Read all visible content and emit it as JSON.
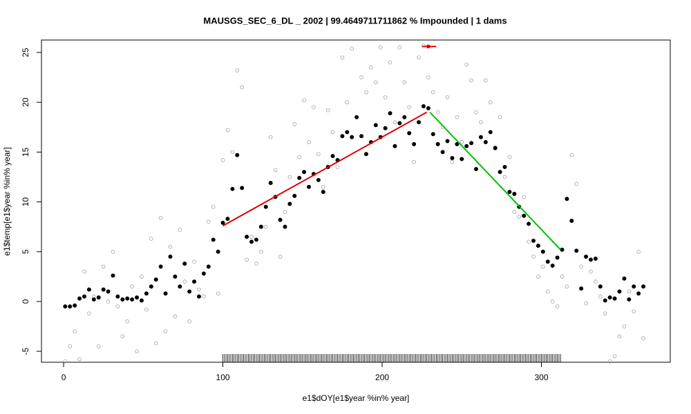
{
  "chart_data": {
    "type": "scatter",
    "title": "MAUSGS_SEC_6_DL _ 2002   |   99.4649711711862  % Impounded |  1  dams",
    "xlabel": "e1$dOY[e1$year %in% year]",
    "ylabel": "e1$temp[e1$year %in% year]",
    "xlim": [
      -13.9,
      380.9
    ],
    "ylim": [
      -6.1,
      26.25
    ],
    "xticks": [
      0,
      100,
      200,
      300
    ],
    "yticks": [
      -5,
      0,
      5,
      10,
      15,
      20,
      25
    ],
    "x": [
      1,
      4,
      7,
      10,
      13,
      16,
      19,
      22,
      25,
      28,
      31,
      34,
      37,
      40,
      43,
      46,
      49,
      52,
      55,
      58,
      61,
      64,
      67,
      70,
      73,
      76,
      79,
      82,
      85,
      88,
      91,
      94,
      97,
      100,
      103,
      106,
      109,
      112,
      115,
      118,
      121,
      124,
      127,
      130,
      133,
      136,
      139,
      142,
      145,
      148,
      151,
      154,
      157,
      160,
      163,
      166,
      169,
      172,
      175,
      178,
      181,
      184,
      187,
      190,
      193,
      196,
      199,
      202,
      205,
      208,
      211,
      214,
      217,
      220,
      223,
      226,
      229,
      232,
      235,
      238,
      241,
      244,
      247,
      250,
      253,
      256,
      259,
      262,
      265,
      268,
      271,
      274,
      277,
      280,
      283,
      286,
      289,
      292,
      295,
      298,
      301,
      304,
      307,
      310,
      313,
      316,
      319,
      322,
      325,
      328,
      331,
      334,
      337,
      340,
      343,
      346,
      349,
      352,
      355,
      358,
      361,
      364
    ],
    "series": [
      {
        "color": "#a0a0a0",
        "filled": false,
        "values": [
          -6.0,
          -4.5,
          -3.0,
          -5.8,
          3.0,
          -1.2,
          0.5,
          -4.5,
          3.5,
          0.0,
          5.0,
          -0.5,
          -3.5,
          -2.0,
          1.5,
          -5.0,
          2.5,
          -0.8,
          6.3,
          -4.2,
          8.4,
          -3.0,
          5.5,
          -1.5,
          7.2,
          2.0,
          -2.0,
          4.0,
          1.2,
          0.5,
          8.0,
          9.5,
          0.8,
          14.2,
          17.2,
          15.0,
          23.2,
          21.5,
          4.2,
          6.5,
          3.8,
          5.0,
          7.5,
          16.5,
          13.2,
          4.5,
          9.0,
          12.5,
          17.8,
          14.5,
          20.2,
          16.0,
          19.5,
          14.8,
          11.5,
          19.2,
          17.0,
          13.5,
          24.5,
          20.0,
          25.4,
          18.5,
          22.5,
          21.0,
          23.5,
          22.0,
          25.5,
          20.5,
          24.0,
          18.0,
          25.5,
          22.0,
          19.5,
          14.0,
          24.5,
          25.7,
          22.5,
          21.0,
          19.0,
          17.5,
          20.5,
          14.0,
          18.5,
          16.0,
          23.8,
          22.2,
          19.0,
          18.0,
          22.2,
          20.0,
          15.5,
          18.5,
          12.5,
          14.5,
          9.0,
          8.5,
          10.5,
          6.0,
          4.5,
          2.5,
          3.5,
          1.0,
          0.0,
          -0.5,
          2.5,
          1.5,
          14.7,
          11.8,
          3.5,
          -0.2,
          3.0,
          2.0,
          0.5,
          -1.2,
          -6.0,
          -5.5,
          -3.5,
          -2.5,
          1.0,
          -1.0,
          5.0,
          -3.7
        ]
      },
      {
        "color": "#000000",
        "filled": true,
        "values": [
          -0.5,
          -0.5,
          -0.4,
          0.3,
          0.5,
          1.2,
          0.2,
          0.4,
          1.2,
          1.0,
          2.6,
          0.5,
          0.2,
          0.3,
          0.2,
          0.4,
          0.1,
          0.8,
          1.5,
          2.2,
          3.5,
          0.8,
          4.5,
          2.5,
          1.5,
          3.8,
          1.0,
          2.0,
          0.5,
          2.8,
          3.5,
          6.2,
          5.0,
          7.9,
          8.3,
          11.3,
          14.7,
          11.4,
          6.5,
          6.0,
          6.2,
          7.5,
          9.5,
          11.9,
          10.5,
          8.2,
          7.5,
          9.8,
          10.6,
          12.4,
          13.0,
          11.5,
          12.8,
          12.2,
          11.0,
          13.5,
          14.6,
          14.2,
          16.6,
          17.0,
          16.5,
          18.5,
          16.6,
          14.8,
          16.0,
          17.7,
          16.5,
          17.4,
          18.9,
          15.6,
          17.9,
          18.5,
          16.9,
          15.8,
          18.0,
          19.6,
          19.4,
          16.8,
          15.8,
          15.0,
          16.1,
          14.4,
          15.8,
          14.3,
          15.6,
          15.9,
          13.3,
          16.5,
          16.0,
          17.0,
          15.4,
          13.0,
          13.5,
          11.0,
          10.8,
          9.5,
          8.6,
          7.8,
          6.1,
          5.6,
          5.0,
          4.0,
          3.6,
          4.4,
          5.2,
          10.3,
          8.1,
          5.1,
          1.3,
          4.5,
          4.2,
          4.3,
          1.5,
          0.1,
          0.4,
          0.3,
          1.0,
          2.3,
          0.2,
          1.5,
          0.8,
          1.5
        ]
      }
    ],
    "lines": [
      {
        "color": "#dd0000",
        "x": [
          100,
          228
        ],
        "y": [
          7.6,
          19.0
        ]
      },
      {
        "color": "#00c000",
        "x": [
          230,
          312
        ],
        "y": [
          19.0,
          5.2
        ]
      },
      {
        "color": "#dd0000",
        "x": [
          225,
          234
        ],
        "y": [
          25.6,
          25.6
        ]
      }
    ],
    "points": [
      {
        "color": "#dd0000",
        "x": 229,
        "y": 25.6
      }
    ],
    "rug": [
      100,
      312
    ]
  }
}
